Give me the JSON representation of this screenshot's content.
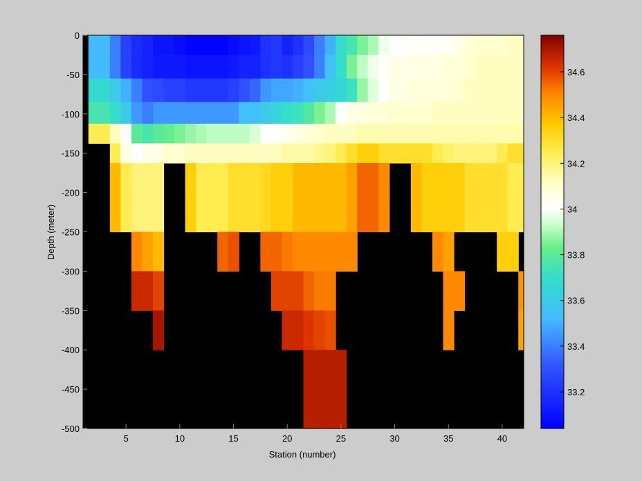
{
  "chart_data": {
    "type": "heatmap",
    "xlabel": "Station (number)",
    "ylabel": "Depth (meter)",
    "xlim": [
      1,
      42
    ],
    "ylim": [
      -500,
      0
    ],
    "x_ticks": [
      "5",
      "10",
      "15",
      "20",
      "25",
      "30",
      "35",
      "40"
    ],
    "y_ticks": [
      "0",
      "-50",
      "-100",
      "-150",
      "-200",
      "-250",
      "-300",
      "-350",
      "-400",
      "-450",
      "-500"
    ],
    "colorbar_ticks": [
      "33.2",
      "33.4",
      "33.6",
      "33.8",
      "34",
      "34.2",
      "34.4",
      "34.6"
    ],
    "colorbar_range": [
      33.04,
      34.76
    ],
    "colormap": "jet-white",
    "no_data_color": "#000000",
    "depth_levels": [
      -10,
      -40,
      -70,
      -100,
      -125,
      -150,
      -175,
      -225,
      -275,
      -325,
      -375,
      -425,
      -475
    ],
    "stations": [
      2,
      3,
      4,
      5,
      6,
      7,
      8,
      9,
      10,
      11,
      12,
      13,
      14,
      15,
      16,
      17,
      18,
      19,
      20,
      21,
      22,
      23,
      24,
      25,
      26,
      27,
      28,
      29,
      30,
      31,
      32,
      33,
      34,
      35,
      36,
      37,
      38,
      39,
      40,
      41,
      42
    ],
    "values": [
      [
        33.52,
        33.52,
        33.4,
        33.25,
        33.18,
        33.15,
        33.1,
        33.1,
        33.08,
        33.05,
        33.05,
        33.05,
        33.05,
        33.08,
        33.1,
        33.12,
        33.2,
        33.22,
        33.15,
        33.2,
        33.28,
        33.4,
        33.5,
        33.7,
        33.75,
        33.85,
        33.9,
        33.98,
        34.0,
        34.0,
        34.02,
        34.02,
        34.02,
        34.02,
        34.05,
        34.08,
        34.1,
        34.1,
        34.1,
        34.12,
        34.12
      ],
      [
        33.52,
        33.52,
        33.4,
        33.25,
        33.18,
        33.15,
        33.12,
        33.12,
        33.12,
        33.1,
        33.1,
        33.1,
        33.1,
        33.12,
        33.15,
        33.15,
        33.2,
        33.22,
        33.2,
        33.25,
        33.3,
        33.4,
        33.55,
        33.7,
        33.85,
        33.92,
        33.98,
        34.02,
        34.05,
        34.05,
        34.06,
        34.06,
        34.06,
        34.08,
        34.08,
        34.1,
        34.12,
        34.12,
        34.12,
        34.12,
        34.12
      ],
      [
        33.68,
        33.68,
        33.6,
        33.5,
        33.4,
        33.3,
        33.28,
        33.25,
        33.25,
        33.22,
        33.22,
        33.22,
        33.22,
        33.25,
        33.3,
        33.35,
        33.45,
        33.48,
        33.48,
        33.5,
        33.55,
        33.6,
        33.62,
        33.66,
        33.72,
        33.88,
        33.96,
        34.0,
        34.06,
        34.06,
        34.08,
        34.08,
        34.08,
        34.08,
        34.1,
        34.12,
        34.12,
        34.12,
        34.12,
        34.12,
        34.12
      ],
      [
        33.75,
        33.75,
        33.7,
        33.6,
        33.45,
        33.4,
        33.45,
        33.45,
        33.45,
        33.45,
        33.45,
        33.45,
        33.45,
        33.45,
        33.55,
        33.55,
        33.6,
        33.65,
        33.7,
        33.72,
        33.78,
        33.85,
        33.9,
        34.0,
        34.05,
        34.06,
        34.08,
        34.08,
        34.1,
        34.1,
        34.1,
        34.1,
        34.12,
        34.12,
        34.12,
        34.12,
        34.12,
        34.12,
        34.12,
        34.12,
        34.12
      ],
      [
        34.25,
        34.25,
        34.12,
        34.0,
        33.8,
        33.75,
        33.8,
        33.82,
        33.85,
        33.88,
        33.9,
        33.92,
        33.92,
        33.92,
        33.92,
        33.95,
        34.0,
        34.02,
        34.04,
        34.06,
        34.08,
        34.1,
        34.12,
        34.12,
        34.12,
        34.14,
        34.14,
        34.14,
        34.14,
        34.14,
        34.14,
        34.14,
        34.14,
        34.14,
        34.14,
        34.14,
        34.14,
        34.14,
        34.14,
        34.14,
        34.14
      ],
      [
        null,
        null,
        34.25,
        34.05,
        34.0,
        34.05,
        34.06,
        34.1,
        34.1,
        34.12,
        34.12,
        34.12,
        34.12,
        34.12,
        34.12,
        34.12,
        34.12,
        34.12,
        34.15,
        34.15,
        34.15,
        34.18,
        34.2,
        34.25,
        34.3,
        34.35,
        34.35,
        34.3,
        34.3,
        34.3,
        34.3,
        34.3,
        34.25,
        34.22,
        34.2,
        34.2,
        34.2,
        34.2,
        34.25,
        34.3,
        34.3
      ],
      [
        null,
        null,
        34.4,
        34.25,
        34.2,
        34.2,
        34.2,
        null,
        null,
        34.35,
        34.25,
        34.25,
        34.25,
        34.3,
        34.3,
        34.3,
        34.32,
        34.35,
        34.35,
        34.4,
        34.4,
        34.4,
        34.4,
        34.4,
        34.45,
        34.55,
        34.55,
        34.5,
        null,
        null,
        34.4,
        34.35,
        34.35,
        34.35,
        34.35,
        34.3,
        34.3,
        34.3,
        34.3,
        34.25,
        34.25
      ],
      [
        null,
        null,
        34.4,
        34.25,
        34.2,
        34.2,
        34.2,
        null,
        null,
        34.35,
        34.25,
        34.25,
        34.25,
        34.3,
        34.3,
        34.3,
        34.32,
        34.35,
        34.35,
        34.4,
        34.4,
        34.4,
        34.4,
        34.4,
        34.45,
        34.55,
        34.55,
        34.5,
        null,
        null,
        34.4,
        34.35,
        34.35,
        34.35,
        34.35,
        34.3,
        34.3,
        34.3,
        34.3,
        34.25,
        34.25
      ],
      [
        null,
        null,
        null,
        null,
        34.5,
        34.45,
        34.4,
        null,
        null,
        null,
        null,
        null,
        34.55,
        34.58,
        null,
        null,
        34.55,
        34.55,
        34.52,
        34.5,
        34.5,
        34.5,
        34.5,
        34.5,
        34.5,
        null,
        null,
        null,
        null,
        null,
        null,
        null,
        34.5,
        34.45,
        null,
        null,
        null,
        null,
        34.35,
        34.35,
        null
      ],
      [
        null,
        null,
        null,
        null,
        34.65,
        34.65,
        34.6,
        null,
        null,
        null,
        null,
        null,
        null,
        null,
        null,
        null,
        null,
        34.6,
        34.6,
        34.6,
        34.55,
        34.52,
        34.52,
        null,
        null,
        null,
        null,
        null,
        null,
        null,
        null,
        null,
        null,
        34.5,
        34.5,
        null,
        null,
        null,
        null,
        null,
        34.48
      ],
      [
        null,
        null,
        null,
        null,
        null,
        null,
        34.7,
        null,
        null,
        null,
        null,
        null,
        null,
        null,
        null,
        null,
        null,
        null,
        34.65,
        34.65,
        34.62,
        34.6,
        34.58,
        null,
        null,
        null,
        null,
        null,
        null,
        null,
        null,
        null,
        null,
        34.5,
        null,
        null,
        null,
        null,
        null,
        null,
        34.45
      ],
      [
        null,
        null,
        null,
        null,
        null,
        null,
        null,
        null,
        null,
        null,
        null,
        null,
        null,
        null,
        null,
        null,
        null,
        null,
        null,
        null,
        34.68,
        34.68,
        34.68,
        34.68,
        null,
        null,
        null,
        null,
        null,
        null,
        null,
        null,
        null,
        null,
        null,
        null,
        null,
        null,
        null,
        null,
        null
      ],
      [
        null,
        null,
        null,
        null,
        null,
        null,
        null,
        null,
        null,
        null,
        null,
        null,
        null,
        null,
        null,
        null,
        null,
        null,
        null,
        null,
        34.68,
        34.68,
        34.68,
        34.68,
        null,
        null,
        null,
        null,
        null,
        null,
        null,
        null,
        null,
        null,
        null,
        null,
        null,
        null,
        null,
        null,
        null
      ]
    ]
  }
}
